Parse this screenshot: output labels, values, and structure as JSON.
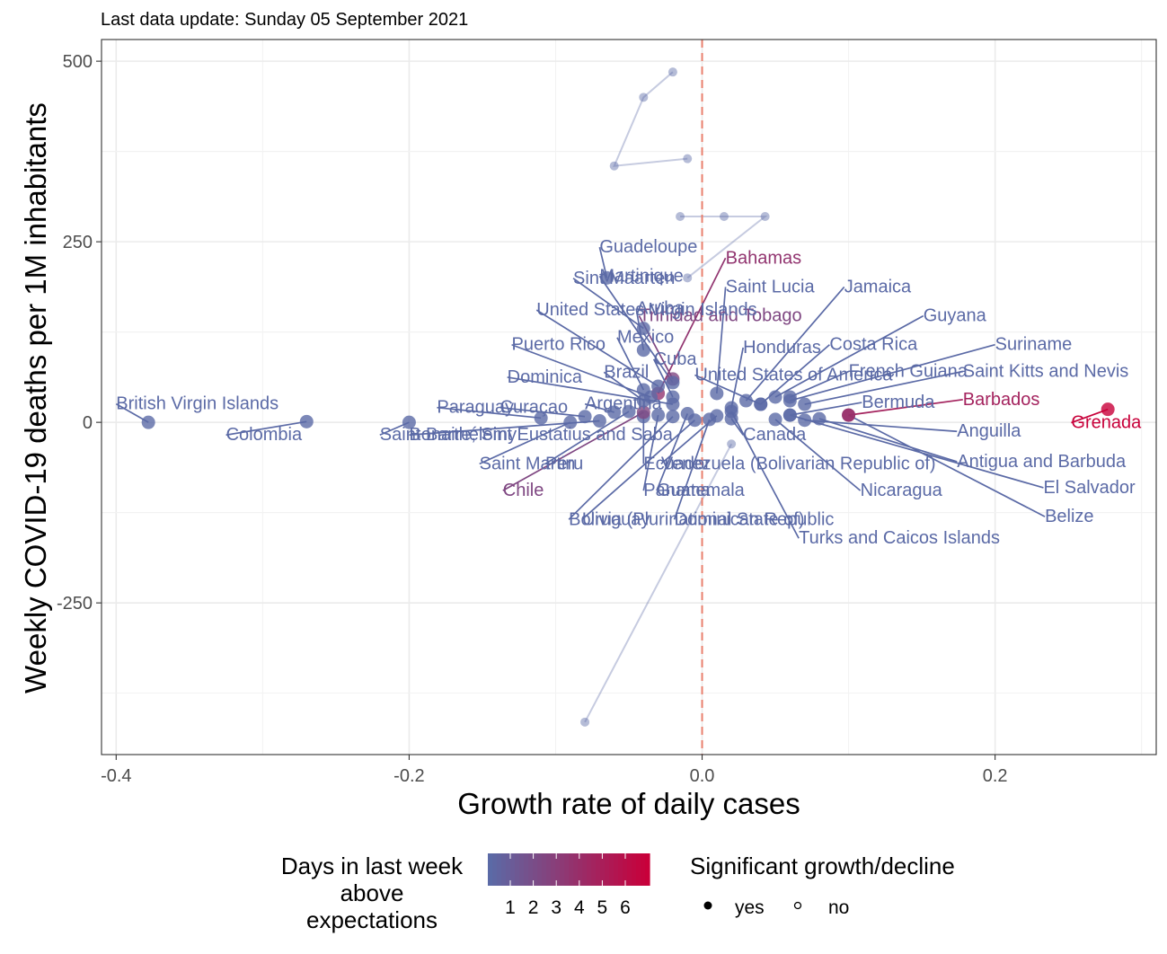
{
  "chart_data": {
    "type": "scatter",
    "subtitle": "Last data update: Sunday 05 September 2021",
    "xlabel": "Growth rate of daily cases",
    "ylabel": "Weekly COVID-19 deaths per 1M inhabitants",
    "xlim": [
      -0.41,
      0.31
    ],
    "ylim": [
      -460,
      530
    ],
    "xticks": [
      -0.4,
      -0.2,
      0.0,
      0.2
    ],
    "xtick_labels": [
      "-0.4",
      "-0.2",
      "0.0",
      "0.2"
    ],
    "yticks": [
      -250,
      0,
      250,
      500
    ],
    "ytick_labels": [
      "-250",
      "0",
      "250",
      "500"
    ],
    "grid": true,
    "reference_line": {
      "x": 0,
      "color": "#e9806e",
      "style": "dashed"
    },
    "color_scale": {
      "low": "#5b6aa6",
      "high": "#c8003a"
    },
    "legend": {
      "position": "bottom",
      "color_title": "Days in last week\nabove\nexpectations",
      "color_ticks": [
        "1",
        "2",
        "3",
        "4",
        "5",
        "6"
      ],
      "shape_title": "Significant growth/decline",
      "shape_items": [
        "yes",
        "no"
      ]
    },
    "countries": [
      {
        "name": "British Virgin Islands",
        "x": -0.378,
        "y": 0,
        "days": 0,
        "label": [
          -0.4,
          18
        ]
      },
      {
        "name": "Colombia",
        "x": -0.27,
        "y": 1,
        "days": 0,
        "label": [
          -0.325,
          -25
        ]
      },
      {
        "name": "Saint Barthélemy",
        "x": -0.2,
        "y": 0,
        "days": 0,
        "label": [
          -0.22,
          -25
        ]
      },
      {
        "name": "Paraguay",
        "x": -0.11,
        "y": 6,
        "days": 0,
        "label": [
          -0.181,
          13
        ]
      },
      {
        "name": "Curaçao",
        "x": -0.08,
        "y": 8,
        "days": 0,
        "label": [
          -0.138,
          13
        ]
      },
      {
        "name": "Argentina",
        "x": -0.06,
        "y": 14,
        "days": 0,
        "label": [
          -0.08,
          18
        ]
      },
      {
        "name": "Bonaire, Sint Eustatius and Saba",
        "x": -0.07,
        "y": 2,
        "days": 0,
        "label": [
          -0.2,
          -25
        ]
      },
      {
        "name": "Saint Martin",
        "x": -0.09,
        "y": 0,
        "days": 0,
        "label": [
          -0.152,
          -65
        ]
      },
      {
        "name": "Peru",
        "x": -0.05,
        "y": 15,
        "days": 0,
        "label": [
          -0.107,
          -65
        ]
      },
      {
        "name": "Ecuador",
        "x": -0.04,
        "y": 8,
        "days": 0,
        "label": [
          -0.04,
          -65
        ]
      },
      {
        "name": "Chile",
        "x": -0.04,
        "y": 14,
        "days": 2,
        "label": [
          -0.136,
          -102
        ]
      },
      {
        "name": "Panama",
        "x": -0.03,
        "y": 10,
        "days": 0,
        "label": [
          -0.04,
          -102
        ]
      },
      {
        "name": "Bolivia (Plurinational State of)",
        "x": -0.02,
        "y": 8,
        "days": 0,
        "label": [
          -0.091,
          -142
        ]
      },
      {
        "name": "Uruguay",
        "x": -0.005,
        "y": 3,
        "days": 0,
        "label": [
          -0.082,
          -142
        ]
      },
      {
        "name": "Guatemala",
        "x": -0.01,
        "y": 12,
        "days": 0,
        "label": [
          -0.031,
          -102
        ]
      },
      {
        "name": "Dominican Republic",
        "x": 0.005,
        "y": 4,
        "days": 0,
        "label": [
          -0.019,
          -142
        ]
      },
      {
        "name": "Venezuela (Bolivarian Republic of)",
        "x": 0.01,
        "y": 9,
        "days": 0,
        "label": [
          -0.028,
          -65
        ]
      },
      {
        "name": "Canada",
        "x": 0.02,
        "y": 5,
        "days": 0,
        "label": [
          0.028,
          -25
        ]
      },
      {
        "name": "Turks and Caicos Islands",
        "x": 0.02,
        "y": 15,
        "days": 0,
        "label": [
          0.066,
          -168
        ]
      },
      {
        "name": "Nicaragua",
        "x": 0.05,
        "y": 4,
        "days": 0,
        "label": [
          0.108,
          -102
        ]
      },
      {
        "name": "Anguilla",
        "x": 0.07,
        "y": 3,
        "days": 0,
        "label": [
          0.174,
          -20
        ]
      },
      {
        "name": "Antigua and Barbuda",
        "x": 0.08,
        "y": 5,
        "days": 0,
        "label": [
          0.174,
          -62
        ]
      },
      {
        "name": "El Salvador",
        "x": 0.06,
        "y": 10,
        "days": 0,
        "label": [
          0.233,
          -98
        ]
      },
      {
        "name": "Belize",
        "x": 0.1,
        "y": 10,
        "days": 0,
        "label": [
          0.234,
          -138
        ]
      },
      {
        "name": "Grenada",
        "x": 0.277,
        "y": 18,
        "days": 6,
        "label": [
          0.252,
          -8
        ]
      },
      {
        "name": "Barbados",
        "x": 0.1,
        "y": 10,
        "days": 4,
        "label": [
          0.178,
          24
        ]
      },
      {
        "name": "Bermuda",
        "x": 0.06,
        "y": 10,
        "days": 0,
        "label": [
          0.109,
          20
        ]
      },
      {
        "name": "French Guiana",
        "x": 0.06,
        "y": 35,
        "days": 0,
        "label": [
          0.1,
          63
        ]
      },
      {
        "name": "Saint Kitts and Nevis",
        "x": 0.07,
        "y": 25,
        "days": 0,
        "label": [
          0.178,
          63
        ]
      },
      {
        "name": "United States of America",
        "x": 0.04,
        "y": 25,
        "days": 0,
        "label": [
          -0.005,
          58
        ]
      },
      {
        "name": "Suriname",
        "x": 0.06,
        "y": 30,
        "days": 0,
        "label": [
          0.2,
          100
        ]
      },
      {
        "name": "Costa Rica",
        "x": 0.04,
        "y": 25,
        "days": 0,
        "label": [
          0.087,
          100
        ]
      },
      {
        "name": "Guyana",
        "x": 0.05,
        "y": 35,
        "days": 0,
        "label": [
          0.151,
          140
        ]
      },
      {
        "name": "Honduras",
        "x": 0.02,
        "y": 20,
        "days": 0,
        "label": [
          0.028,
          96
        ]
      },
      {
        "name": "Jamaica",
        "x": 0.03,
        "y": 30,
        "days": 0,
        "label": [
          0.097,
          180
        ]
      },
      {
        "name": "Saint Lucia",
        "x": 0.01,
        "y": 40,
        "days": 0,
        "label": [
          0.016,
          180
        ]
      },
      {
        "name": "Bahamas",
        "x": -0.03,
        "y": 40,
        "days": 3,
        "label": [
          0.016,
          220
        ]
      },
      {
        "name": "Trinidad and Tobago",
        "x": -0.02,
        "y": 60,
        "days": 2,
        "label": [
          -0.043,
          140
        ]
      },
      {
        "name": "Martinique",
        "x": -0.02,
        "y": 55,
        "days": 0,
        "label": [
          -0.07,
          195
        ]
      },
      {
        "name": "Guadeloupe",
        "x": -0.065,
        "y": 200,
        "days": 0,
        "label": [
          -0.07,
          235
        ]
      },
      {
        "name": "Sint Maarten",
        "x": -0.04,
        "y": 130,
        "days": 0,
        "label": [
          -0.088,
          192
        ]
      },
      {
        "name": "Aruba",
        "x": -0.04,
        "y": 100,
        "days": 0,
        "label": [
          -0.045,
          150
        ]
      },
      {
        "name": "United States Virgin Islands",
        "x": -0.03,
        "y": 50,
        "days": 0,
        "label": [
          -0.113,
          148
        ]
      },
      {
        "name": "Mexico",
        "x": -0.04,
        "y": 45,
        "days": 0,
        "label": [
          -0.058,
          110
        ]
      },
      {
        "name": "Puerto Rico",
        "x": -0.035,
        "y": 35,
        "days": 0,
        "label": [
          -0.13,
          100
        ]
      },
      {
        "name": "Cuba",
        "x": -0.02,
        "y": 35,
        "days": 0,
        "label": [
          -0.033,
          80
        ]
      },
      {
        "name": "Brazil",
        "x": -0.04,
        "y": 30,
        "days": 0,
        "label": [
          -0.067,
          62
        ]
      },
      {
        "name": "Dominica",
        "x": -0.02,
        "y": 25,
        "days": 0,
        "label": [
          -0.133,
          55
        ]
      }
    ],
    "trails": [
      {
        "days": 0,
        "points": [
          [
            -0.02,
            485
          ],
          [
            -0.04,
            450
          ],
          [
            -0.06,
            355
          ],
          [
            -0.01,
            365
          ]
        ]
      },
      {
        "days": 0,
        "points": [
          [
            -0.015,
            285
          ],
          [
            0.015,
            285
          ],
          [
            0.043,
            285
          ],
          [
            -0.01,
            200
          ]
        ]
      },
      {
        "days": 0,
        "points": [
          [
            -0.08,
            -415
          ],
          [
            0.02,
            -30
          ]
        ]
      }
    ]
  }
}
